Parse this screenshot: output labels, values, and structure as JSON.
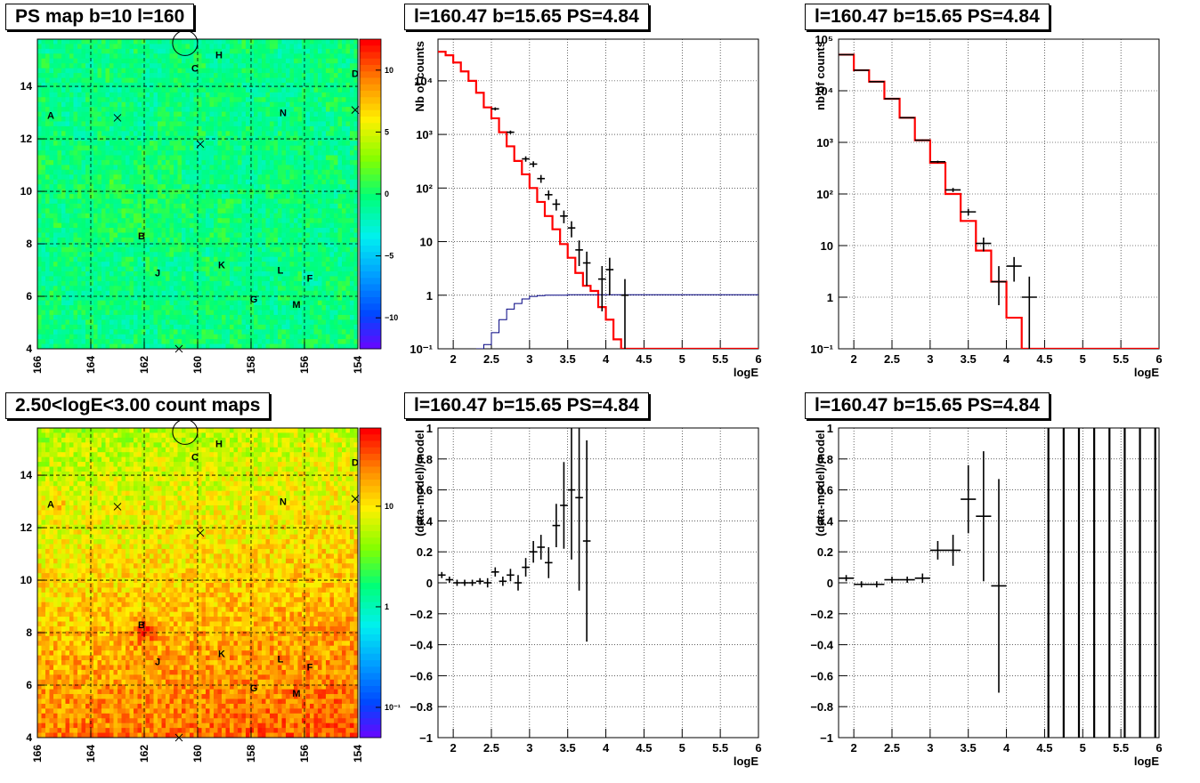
{
  "colors": {
    "data": "#000000",
    "model": "#ff0000",
    "ratio": "#000080",
    "frame": "#000000",
    "grid": "#000000"
  },
  "map_labels": [
    {
      "name": "A",
      "l": 165.5,
      "b": 12.9
    },
    {
      "name": "B",
      "l": 162.1,
      "b": 8.3
    },
    {
      "name": "C",
      "l": 160.1,
      "b": 14.7
    },
    {
      "name": "D",
      "l": 154.1,
      "b": 14.5
    },
    {
      "name": "F",
      "l": 155.8,
      "b": 6.7
    },
    {
      "name": "G",
      "l": 157.9,
      "b": 5.9
    },
    {
      "name": "H",
      "l": 159.2,
      "b": 15.2
    },
    {
      "name": "J",
      "l": 161.5,
      "b": 6.9
    },
    {
      "name": "K",
      "l": 159.1,
      "b": 7.2
    },
    {
      "name": "L",
      "l": 156.9,
      "b": 7.0
    },
    {
      "name": "M",
      "l": 156.3,
      "b": 5.7
    },
    {
      "name": "N",
      "l": 156.8,
      "b": 13.0
    }
  ],
  "map_crosses": [
    {
      "l": 163.0,
      "b": 12.8
    },
    {
      "l": 159.9,
      "b": 11.8
    },
    {
      "l": 154.1,
      "b": 13.1
    },
    {
      "l": 160.7,
      "b": 4.0
    }
  ],
  "map_circle": {
    "l": 160.47,
    "b": 15.65
  },
  "chart_data": [
    {
      "type": "heatmap",
      "title": "PS map b=10 l=160",
      "x_ticks": [
        "166",
        "164",
        "162",
        "160",
        "158",
        "156",
        "154"
      ],
      "y_ticks": [
        "4",
        "6",
        "8",
        "10",
        "12",
        "14"
      ],
      "xlim": [
        166,
        154
      ],
      "ylim": [
        4,
        15.8
      ],
      "colorbar": {
        "min": -12.5,
        "max": 12.5,
        "ticks": [
          "10",
          "5",
          "0",
          "−5",
          "−10"
        ],
        "tick_values": [
          10,
          5,
          0,
          -5,
          -10
        ],
        "scale": "linear"
      },
      "grid": true
    },
    {
      "type": "line",
      "title": "l=160.47 b=15.65 PS=4.84",
      "xlabel": "logE",
      "ylabel": "Nb of counts",
      "xlim": [
        1.8,
        6.0
      ],
      "ylim": [
        0.1,
        60000
      ],
      "yscale": "log",
      "x_ticks": [
        "2",
        "2.5",
        "3",
        "3.5",
        "4",
        "4.5",
        "5",
        "5.5",
        "6"
      ],
      "y_ticks": [
        "10⁻¹",
        "1",
        "10",
        "10²",
        "10³",
        "10⁴"
      ],
      "grid": true,
      "series": [
        {
          "kind": "model",
          "edges": [
            1.8,
            1.9,
            2.0,
            2.1,
            2.2,
            2.3,
            2.4,
            2.5,
            2.6,
            2.7,
            2.8,
            2.9,
            3.0,
            3.1,
            3.2,
            3.3,
            3.4,
            3.5,
            3.6,
            3.7,
            3.8,
            3.9,
            4.0,
            4.1,
            4.2,
            4.3,
            6.0
          ],
          "values": [
            35000,
            30000,
            22000,
            15000,
            10000,
            6000,
            3200,
            2000,
            1100,
            600,
            320,
            180,
            100,
            55,
            30,
            17,
            9,
            5,
            2.6,
            1.5,
            1.2,
            0.6,
            0.35,
            0.15,
            0.1,
            0.1
          ]
        },
        {
          "kind": "ratio",
          "edges": [
            2.3,
            2.4,
            2.5,
            2.6,
            2.7,
            2.8,
            2.9,
            3.0,
            3.1,
            3.2,
            3.3,
            3.4,
            3.5,
            6.0
          ],
          "values": [
            0.1,
            0.12,
            0.2,
            0.35,
            0.55,
            0.7,
            0.85,
            0.95,
            0.98,
            1.0,
            1.0,
            1.0,
            1.02,
            1.02
          ]
        },
        {
          "kind": "data",
          "x": [
            2.55,
            2.75,
            2.95,
            3.05,
            3.15,
            3.25,
            3.35,
            3.45,
            3.55,
            3.65,
            3.75,
            3.95,
            4.05,
            4.25
          ],
          "y": [
            3000,
            1100,
            350,
            280,
            150,
            75,
            50,
            30,
            18,
            7,
            4,
            2,
            3,
            1
          ],
          "xerr": 0.05,
          "yerr_low": [
            200,
            80,
            40,
            35,
            25,
            15,
            12,
            8,
            6,
            3.5,
            2.5,
            1.5,
            2,
            1
          ],
          "yerr_high": [
            200,
            80,
            40,
            35,
            25,
            15,
            12,
            8,
            6,
            3.5,
            2.5,
            1.5,
            2,
            1
          ]
        }
      ]
    },
    {
      "type": "line",
      "title": "l=160.47 b=15.65 PS=4.84",
      "xlabel": "logE",
      "ylabel": "nb of counts",
      "xlim": [
        1.8,
        6.0
      ],
      "ylim": [
        0.1,
        100000
      ],
      "yscale": "log",
      "x_ticks": [
        "2",
        "2.5",
        "3",
        "3.5",
        "4",
        "4.5",
        "5",
        "5.5",
        "6"
      ],
      "y_ticks": [
        "10⁻¹",
        "1",
        "10",
        "10²",
        "10³",
        "10⁴",
        "10⁵"
      ],
      "grid": true,
      "series": [
        {
          "kind": "model",
          "edges": [
            1.8,
            2.0,
            2.2,
            2.4,
            2.6,
            2.8,
            3.0,
            3.2,
            3.4,
            3.6,
            3.8,
            4.0,
            4.2,
            4.4,
            4.5,
            6.0
          ],
          "values": [
            50000,
            25000,
            15000,
            7000,
            3000,
            1100,
            400,
            100,
            30,
            8,
            2,
            0.4,
            0.1,
            0.1,
            0.1
          ]
        },
        {
          "kind": "data",
          "x": [
            1.9,
            2.1,
            2.3,
            2.5,
            2.7,
            2.9,
            3.1,
            3.3,
            3.5,
            3.7,
            3.9,
            4.1,
            4.3
          ],
          "y": [
            50000,
            25000,
            15000,
            7000,
            3000,
            1100,
            420,
            120,
            45,
            11,
            2,
            4,
            1
          ],
          "xerr": 0.1,
          "yerr_low": [
            250,
            180,
            130,
            90,
            60,
            35,
            21,
            11,
            6.5,
            3.3,
            1.3,
            2,
            0.9
          ],
          "yerr_high": [
            250,
            180,
            130,
            90,
            60,
            35,
            21,
            11,
            6.5,
            3.3,
            2,
            2,
            1.5
          ]
        }
      ]
    },
    {
      "type": "heatmap",
      "title": "2.50<logE<3.00 count maps",
      "x_ticks": [
        "166",
        "164",
        "162",
        "160",
        "158",
        "156",
        "154"
      ],
      "y_ticks": [
        "4",
        "6",
        "8",
        "10",
        "12",
        "14"
      ],
      "xlim": [
        166,
        154
      ],
      "ylim": [
        4,
        15.8
      ],
      "colorbar": {
        "min": 0.05,
        "max": 60,
        "ticks": [
          "10",
          "1",
          "10⁻¹"
        ],
        "tick_values": [
          10,
          1,
          0.1
        ],
        "scale": "log"
      },
      "grid": true
    },
    {
      "type": "scatter",
      "title": "l=160.47 b=15.65 PS=4.84",
      "xlabel": "logE",
      "ylabel": "(data-model)/model",
      "xlim": [
        1.8,
        6.0
      ],
      "ylim": [
        -1,
        1
      ],
      "x_ticks": [
        "2",
        "2.5",
        "3",
        "3.5",
        "4",
        "4.5",
        "5",
        "5.5",
        "6"
      ],
      "y_ticks": [
        "1",
        "0.8",
        "0.6",
        "0.4",
        "0.2",
        "0",
        "−0.2",
        "−0.4",
        "−0.6",
        "−0.8",
        "−1"
      ],
      "grid": true,
      "series": [
        {
          "kind": "data",
          "x": [
            1.85,
            1.95,
            2.05,
            2.15,
            2.25,
            2.35,
            2.45,
            2.55,
            2.65,
            2.75,
            2.85,
            2.95,
            3.05,
            3.15,
            3.25,
            3.35,
            3.45,
            3.55,
            3.65,
            3.75
          ],
          "y": [
            0.05,
            0.02,
            0.0,
            0.0,
            0.0,
            0.01,
            0.0,
            0.07,
            0.01,
            0.05,
            0.0,
            0.1,
            0.2,
            0.23,
            0.13,
            0.37,
            0.5,
            0.6,
            0.55,
            0.27
          ],
          "xerr": 0.05,
          "yerr": [
            0.02,
            0.02,
            0.02,
            0.02,
            0.02,
            0.02,
            0.03,
            0.03,
            0.03,
            0.04,
            0.05,
            0.06,
            0.07,
            0.08,
            0.1,
            0.14,
            0.28,
            0.45,
            0.6,
            0.65
          ]
        }
      ]
    },
    {
      "type": "scatter",
      "title": "l=160.47 b=15.65 PS=4.84",
      "xlabel": "logE",
      "ylabel": "(data-model)/model",
      "xlim": [
        1.8,
        6.0
      ],
      "ylim": [
        -1,
        1
      ],
      "x_ticks": [
        "2",
        "2.5",
        "3",
        "3.5",
        "4",
        "4.5",
        "5",
        "5.5",
        "6"
      ],
      "y_ticks": [
        "1",
        "0.8",
        "0.6",
        "0.4",
        "0.2",
        "0",
        "−0.2",
        "−0.4",
        "−0.6",
        "−0.8",
        "−1"
      ],
      "grid": true,
      "series": [
        {
          "kind": "data",
          "x": [
            1.9,
            2.1,
            2.3,
            2.5,
            2.7,
            2.9,
            3.1,
            3.3,
            3.5,
            3.7,
            3.9
          ],
          "y": [
            0.03,
            -0.01,
            -0.01,
            0.02,
            0.02,
            0.03,
            0.21,
            0.21,
            0.54,
            0.43,
            -0.02
          ],
          "xerr": 0.1,
          "yerr": [
            0.02,
            0.02,
            0.02,
            0.02,
            0.02,
            0.03,
            0.06,
            0.1,
            0.22,
            0.42,
            0.69
          ]
        },
        {
          "kind": "vlines",
          "x": [
            4.55,
            4.75,
            4.95,
            5.15,
            5.35,
            5.55,
            5.75,
            5.95
          ]
        }
      ]
    }
  ]
}
